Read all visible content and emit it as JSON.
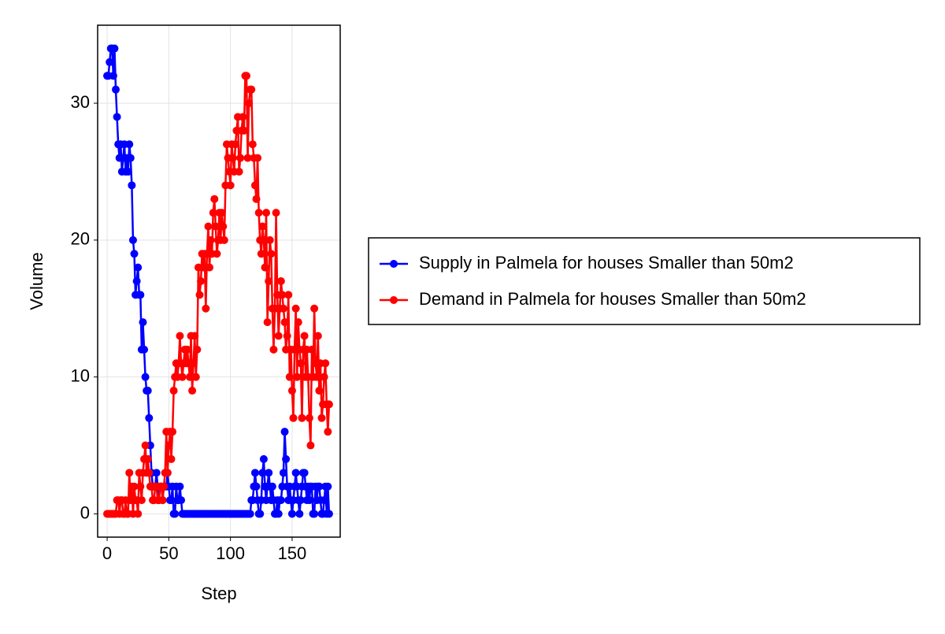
{
  "chart_data": {
    "type": "line",
    "x_label": "Step",
    "y_label": "Volume",
    "x": [
      0,
      1,
      2,
      3,
      4,
      5,
      6,
      7,
      8,
      9,
      10,
      11,
      12,
      13,
      14,
      15,
      16,
      17,
      18,
      19,
      20,
      21,
      22,
      23,
      24,
      25,
      26,
      27,
      28,
      29,
      30,
      31,
      32,
      33,
      34,
      35,
      36,
      37,
      38,
      39,
      40,
      41,
      42,
      43,
      44,
      45,
      46,
      47,
      48,
      49,
      50,
      51,
      52,
      53,
      54,
      55,
      56,
      57,
      58,
      59,
      60,
      61,
      62,
      63,
      64,
      65,
      66,
      67,
      68,
      69,
      70,
      71,
      72,
      73,
      74,
      75,
      76,
      77,
      78,
      79,
      80,
      81,
      82,
      83,
      84,
      85,
      86,
      87,
      88,
      89,
      90,
      91,
      92,
      93,
      94,
      95,
      96,
      97,
      98,
      99,
      100,
      101,
      102,
      103,
      104,
      105,
      106,
      107,
      108,
      109,
      110,
      111,
      112,
      113,
      114,
      115,
      116,
      117,
      118,
      119,
      120,
      121,
      122,
      123,
      124,
      125,
      126,
      127,
      128,
      129,
      130,
      131,
      132,
      133,
      134,
      135,
      136,
      137,
      138,
      139,
      140,
      141,
      142,
      143,
      144,
      145,
      146,
      147,
      148,
      149,
      150,
      151,
      152,
      153,
      154,
      155,
      156,
      157,
      158,
      159,
      160,
      161,
      162,
      163,
      164,
      165,
      166,
      167,
      168,
      169,
      170,
      171,
      172,
      173,
      174,
      175,
      176,
      177,
      178,
      179,
      180
    ],
    "series": [
      {
        "name": "Supply in Palmela for houses Smaller than 50m2",
        "color": "#0000ff",
        "values": [
          32,
          32,
          33,
          34,
          34,
          32,
          34,
          31,
          29,
          27,
          26,
          27,
          25,
          26,
          27,
          25,
          26,
          25,
          27,
          26,
          24,
          20,
          19,
          16,
          17,
          18,
          16,
          16,
          12,
          14,
          12,
          10,
          9,
          9,
          7,
          5,
          3,
          2,
          2,
          2,
          3,
          2,
          1,
          2,
          2,
          1,
          2,
          2,
          2,
          3,
          2,
          1,
          1,
          2,
          0,
          0,
          2,
          1,
          1,
          2,
          1,
          0,
          0,
          0,
          0,
          0,
          0,
          0,
          0,
          0,
          0,
          0,
          0,
          0,
          0,
          0,
          0,
          0,
          0,
          0,
          0,
          0,
          0,
          0,
          0,
          0,
          0,
          0,
          0,
          0,
          0,
          0,
          0,
          0,
          0,
          0,
          0,
          0,
          0,
          0,
          0,
          0,
          0,
          0,
          0,
          0,
          0,
          0,
          0,
          0,
          0,
          0,
          0,
          0,
          0,
          0,
          0,
          1,
          1,
          2,
          3,
          2,
          1,
          0,
          0,
          1,
          3,
          4,
          2,
          1,
          2,
          3,
          2,
          1,
          2,
          1,
          0,
          0,
          1,
          0,
          1,
          1,
          2,
          3,
          6,
          4,
          2,
          1,
          2,
          1,
          0,
          1,
          2,
          3,
          2,
          1,
          0,
          1,
          2,
          3,
          3,
          2,
          1,
          2,
          1,
          2,
          2,
          0,
          0,
          2,
          1,
          2,
          2,
          1,
          0,
          0,
          1,
          2,
          0,
          2,
          0
        ]
      },
      {
        "name": "Demand in Palmela for houses Smaller than 50m2",
        "color": "#ff0000",
        "values": [
          0,
          0,
          0,
          0,
          0,
          0,
          0,
          0,
          1,
          1,
          0,
          1,
          1,
          0,
          0,
          1,
          0,
          0,
          3,
          1,
          2,
          0,
          2,
          1,
          1,
          0,
          3,
          2,
          1,
          3,
          4,
          5,
          3,
          4,
          3,
          2,
          2,
          1,
          1,
          2,
          2,
          1,
          1,
          2,
          2,
          1,
          2,
          3,
          6,
          3,
          5,
          6,
          4,
          6,
          9,
          10,
          11,
          10,
          11,
          13,
          11,
          10,
          11,
          12,
          11,
          12,
          11,
          10,
          13,
          9,
          11,
          13,
          10,
          12,
          18,
          16,
          17,
          19,
          18,
          19,
          15,
          19,
          21,
          18,
          20,
          19,
          22,
          23,
          21,
          19,
          20,
          22,
          20,
          22,
          21,
          20,
          24,
          27,
          26,
          25,
          24,
          27,
          26,
          25,
          27,
          28,
          29,
          25,
          26,
          28,
          29,
          28,
          32,
          32,
          26,
          30,
          31,
          31,
          27,
          26,
          24,
          23,
          26,
          22,
          20,
          19,
          21,
          20,
          18,
          22,
          14,
          17,
          20,
          19,
          15,
          12,
          15,
          22,
          16,
          13,
          15,
          17,
          16,
          15,
          14,
          12,
          13,
          16,
          10,
          12,
          9,
          7,
          12,
          15,
          10,
          14,
          12,
          11,
          7,
          12,
          13,
          10,
          12,
          10,
          7,
          5,
          12,
          10,
          15,
          11,
          10,
          13,
          9,
          11,
          7,
          8,
          10,
          11,
          8,
          6,
          8
        ]
      }
    ],
    "xlim": [
      -7.7,
      189
    ],
    "ylim": [
      -1.7,
      35.7
    ],
    "xticks": [
      0,
      50,
      100,
      150
    ],
    "yticks": [
      0,
      10,
      20,
      30
    ],
    "grid": true,
    "legend": "right"
  }
}
